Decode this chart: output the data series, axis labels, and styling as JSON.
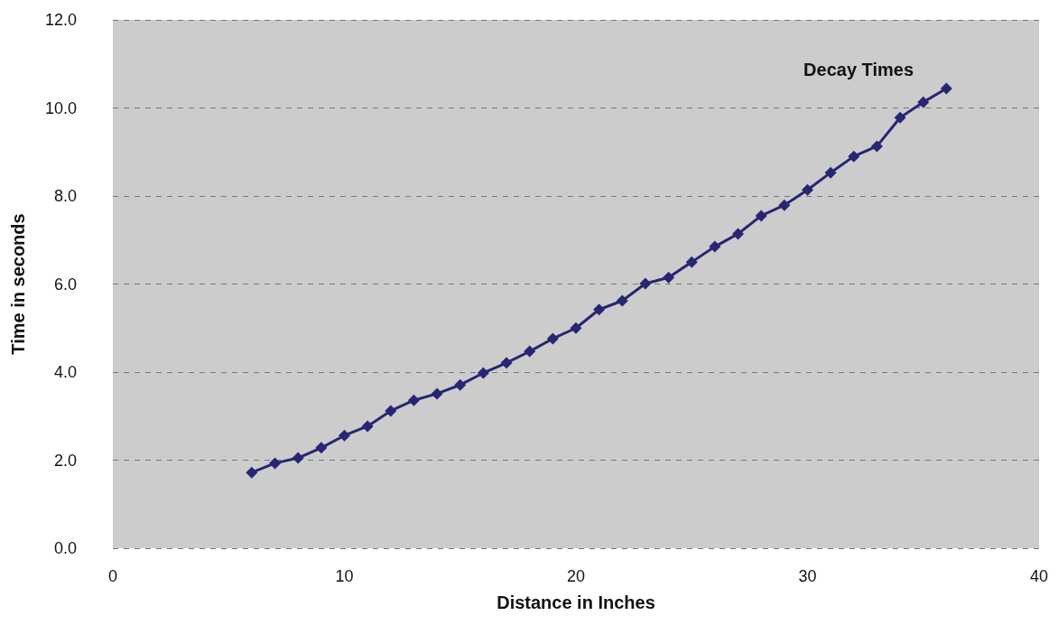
{
  "chart_data": {
    "type": "line",
    "title": "Decay Times",
    "xlabel": "Distance in Inches",
    "ylabel": "Time in seconds",
    "x": [
      6,
      7,
      8,
      9,
      10,
      11,
      12,
      13,
      14,
      15,
      16,
      17,
      18,
      19,
      20,
      21,
      22,
      23,
      24,
      25,
      26,
      27,
      28,
      29,
      30,
      31,
      32,
      33,
      34,
      35,
      36
    ],
    "series": [
      {
        "color": "#262673",
        "values": [
          1.72,
          1.93,
          2.05,
          2.28,
          2.56,
          2.77,
          3.12,
          3.36,
          3.51,
          3.71,
          3.98,
          4.21,
          4.47,
          4.76,
          5.0,
          5.42,
          5.62,
          6.01,
          6.15,
          6.5,
          6.85,
          7.14,
          7.55,
          7.79,
          8.14,
          8.53,
          8.9,
          9.13,
          9.78,
          10.13,
          10.44
        ]
      }
    ],
    "xlim": [
      0,
      40
    ],
    "xticks": [
      0,
      10,
      20,
      30,
      40
    ],
    "ylim": [
      0,
      12
    ],
    "yticks": [
      {
        "value": 0,
        "label": "0.0"
      },
      {
        "value": 2,
        "label": "2.0"
      },
      {
        "value": 4,
        "label": "4.0"
      },
      {
        "value": 6,
        "label": "6.0"
      },
      {
        "value": 8,
        "label": "8.0"
      },
      {
        "value": 10,
        "label": "10.0"
      },
      {
        "value": 12,
        "label": "12.0"
      }
    ],
    "grid": "y",
    "marker": "diamond",
    "line_style": "solid"
  }
}
